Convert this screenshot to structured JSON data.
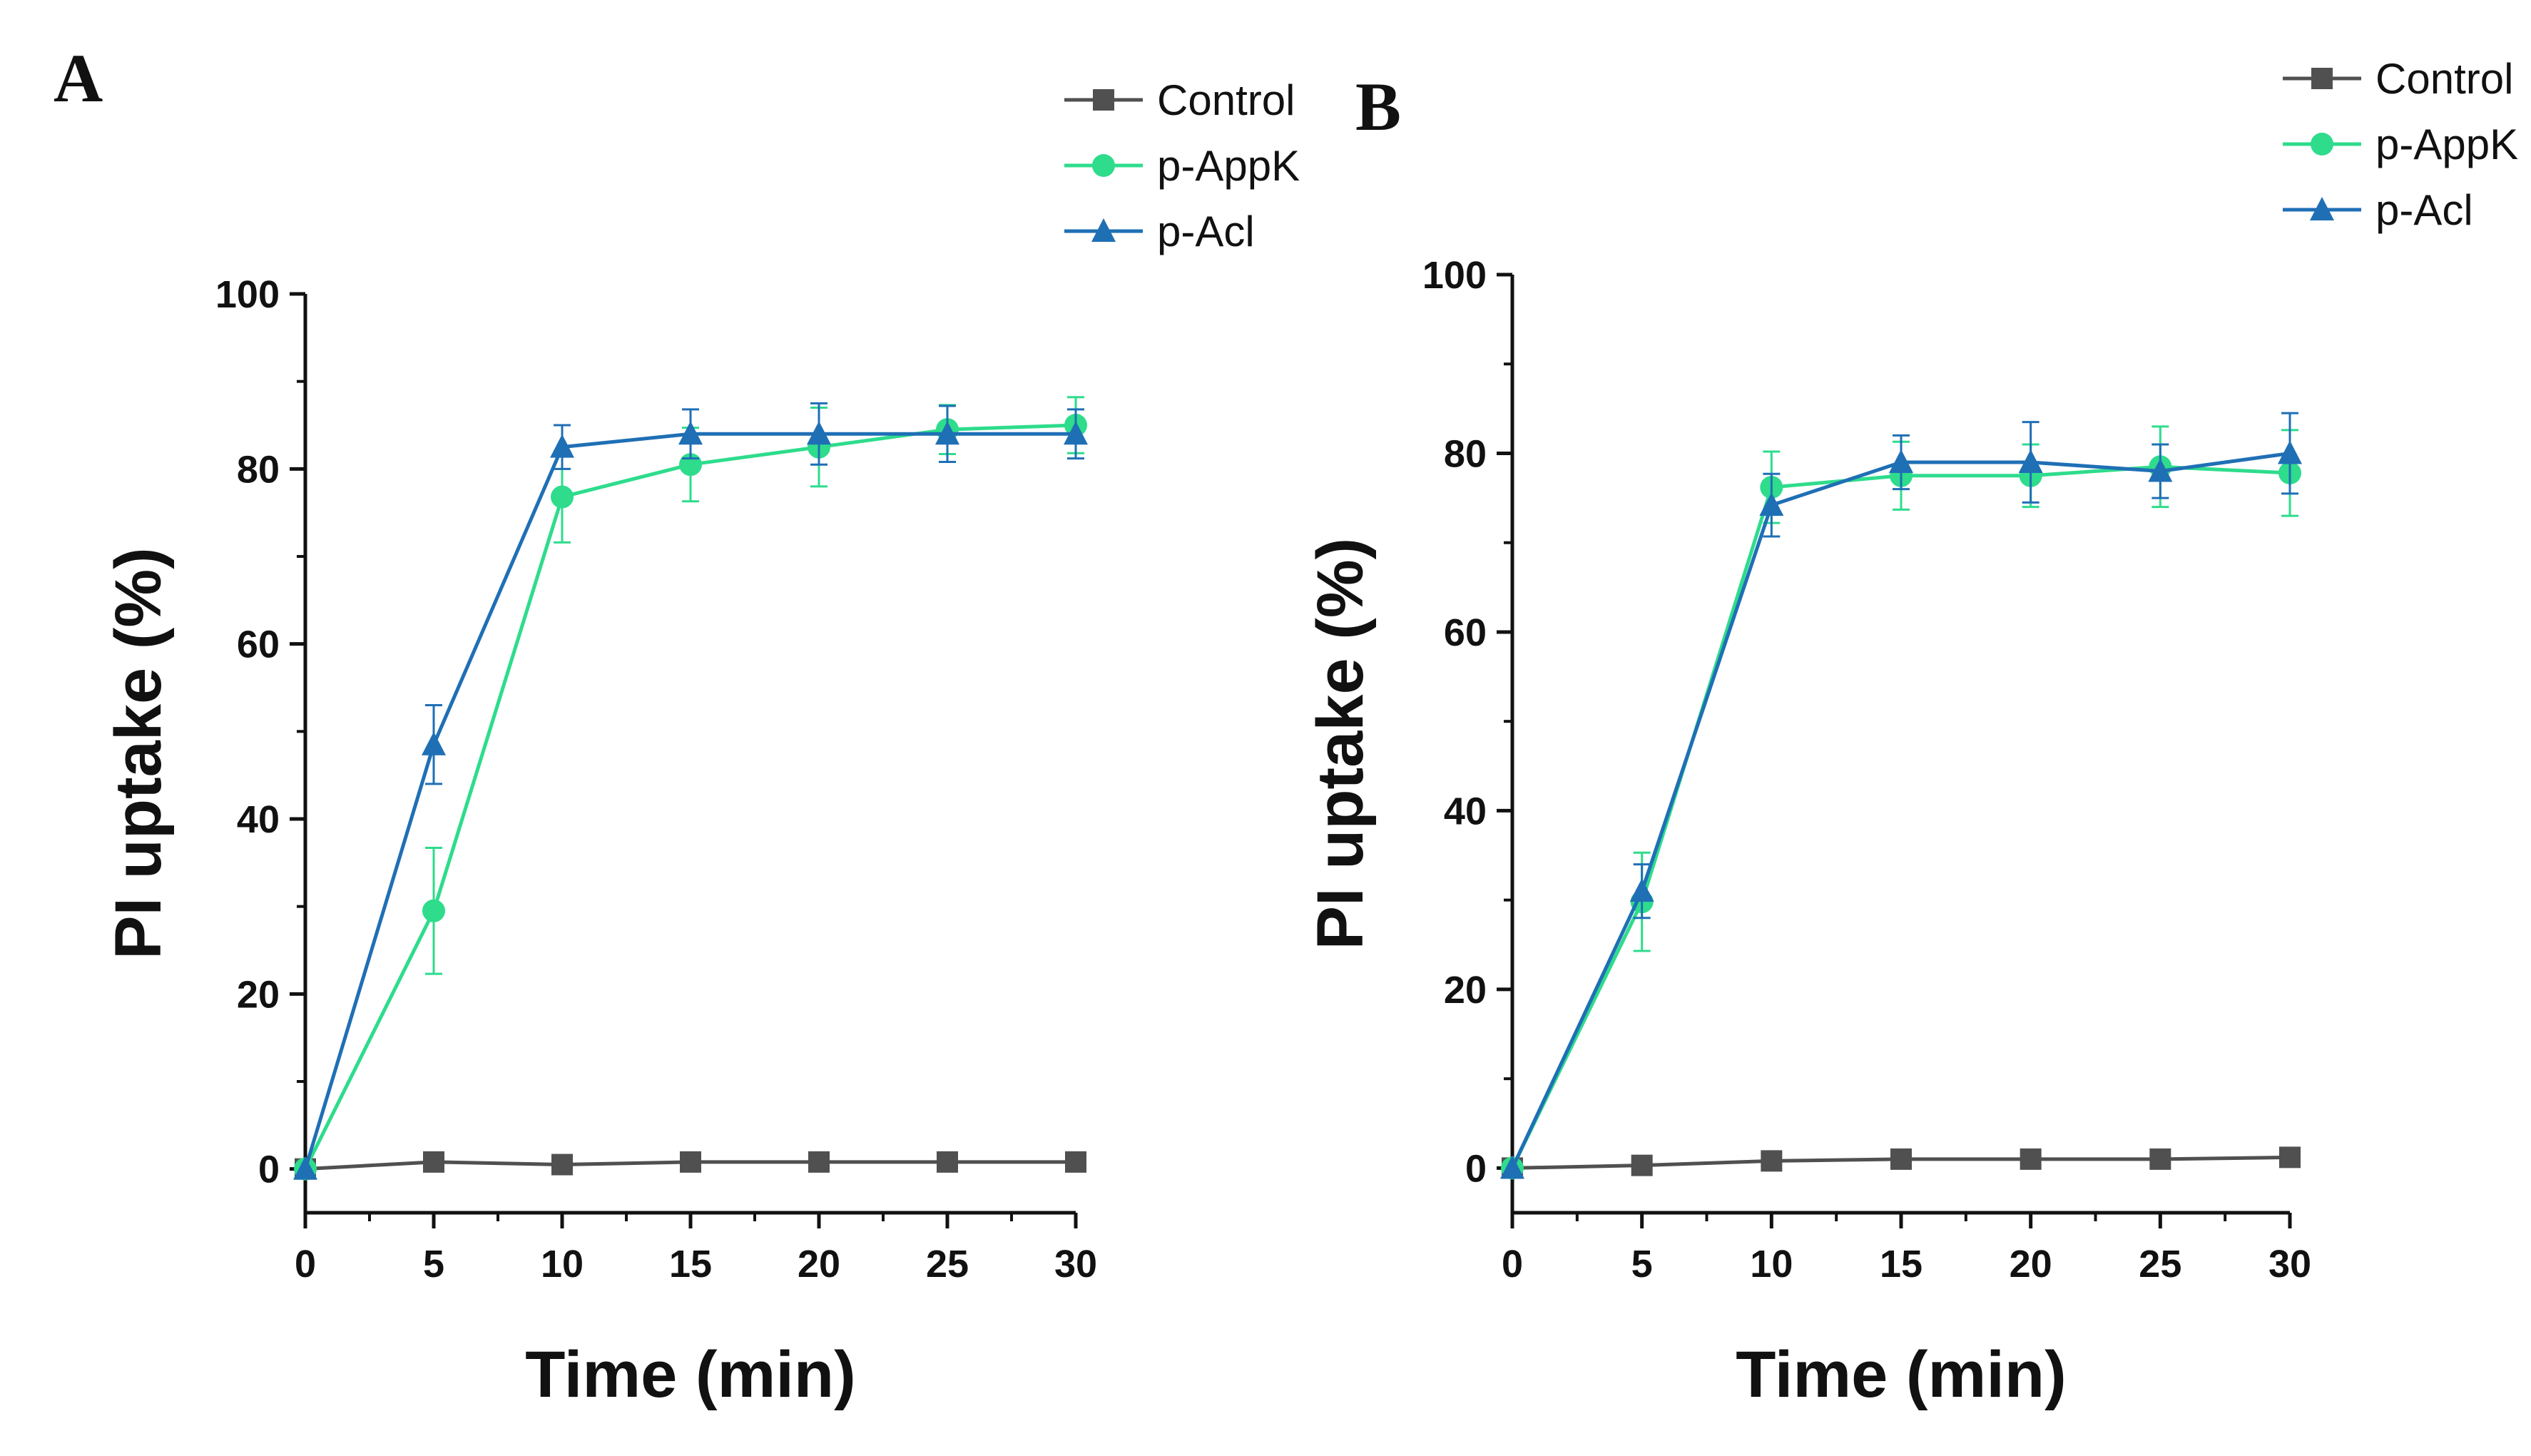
{
  "colors": {
    "Control": "#505050",
    "p-AppK": "#2edc8c",
    "p-Acl": "#1f6fb5",
    "axis": "#111111"
  },
  "chart_data": [
    {
      "panel": "A",
      "type": "line",
      "x": [
        0,
        5,
        10,
        15,
        20,
        25,
        30
      ],
      "xlim": [
        0,
        30
      ],
      "ylim": [
        -5,
        100
      ],
      "xticks": [
        0,
        5,
        10,
        15,
        20,
        25,
        30
      ],
      "yticks": [
        0,
        20,
        40,
        60,
        80,
        100
      ],
      "xlabel": "Time (min)",
      "ylabel": "PI uptake (%)",
      "legend_position": "top-right",
      "series": [
        {
          "name": "Control",
          "marker": "square",
          "values": [
            0,
            0.8,
            0.5,
            0.8,
            0.8,
            0.8,
            0.8
          ],
          "errors": [
            0,
            0.3,
            0.3,
            0.3,
            0.3,
            0.3,
            0.3
          ]
        },
        {
          "name": "p-AppK",
          "marker": "circle",
          "values": [
            0,
            29.5,
            76.8,
            80.5,
            82.5,
            84.5,
            85
          ],
          "errors": [
            0,
            7.2,
            5.2,
            4.2,
            4.5,
            2.8,
            3.2
          ]
        },
        {
          "name": "p-Acl",
          "marker": "triangle",
          "values": [
            0,
            48.5,
            82.5,
            84,
            84,
            84,
            84
          ],
          "errors": [
            0,
            4.5,
            2.5,
            2.8,
            3.5,
            3.2,
            2.8
          ]
        }
      ]
    },
    {
      "panel": "B",
      "type": "line",
      "x": [
        0,
        5,
        10,
        15,
        20,
        25,
        30
      ],
      "xlim": [
        0,
        30
      ],
      "ylim": [
        -5,
        100
      ],
      "xticks": [
        0,
        5,
        10,
        15,
        20,
        25,
        30
      ],
      "yticks": [
        0,
        20,
        40,
        60,
        80,
        100
      ],
      "xlabel": "Time (min)",
      "ylabel": "PI uptake (%)",
      "legend_position": "top-right",
      "series": [
        {
          "name": "Control",
          "marker": "square",
          "values": [
            0,
            0.3,
            0.8,
            1,
            1,
            1,
            1.2
          ],
          "errors": [
            0,
            0.3,
            0.3,
            0.3,
            0.3,
            0.3,
            0.3
          ]
        },
        {
          "name": "p-AppK",
          "marker": "circle",
          "values": [
            0,
            29.8,
            76.2,
            77.5,
            77.5,
            78.5,
            77.8
          ],
          "errors": [
            0,
            5.5,
            4,
            3.8,
            3.5,
            4.5,
            4.8
          ]
        },
        {
          "name": "p-Acl",
          "marker": "triangle",
          "values": [
            0,
            31,
            74.2,
            79,
            79,
            78,
            80
          ],
          "errors": [
            0,
            3,
            3.5,
            3,
            4.5,
            3,
            4.5
          ]
        }
      ]
    }
  ]
}
